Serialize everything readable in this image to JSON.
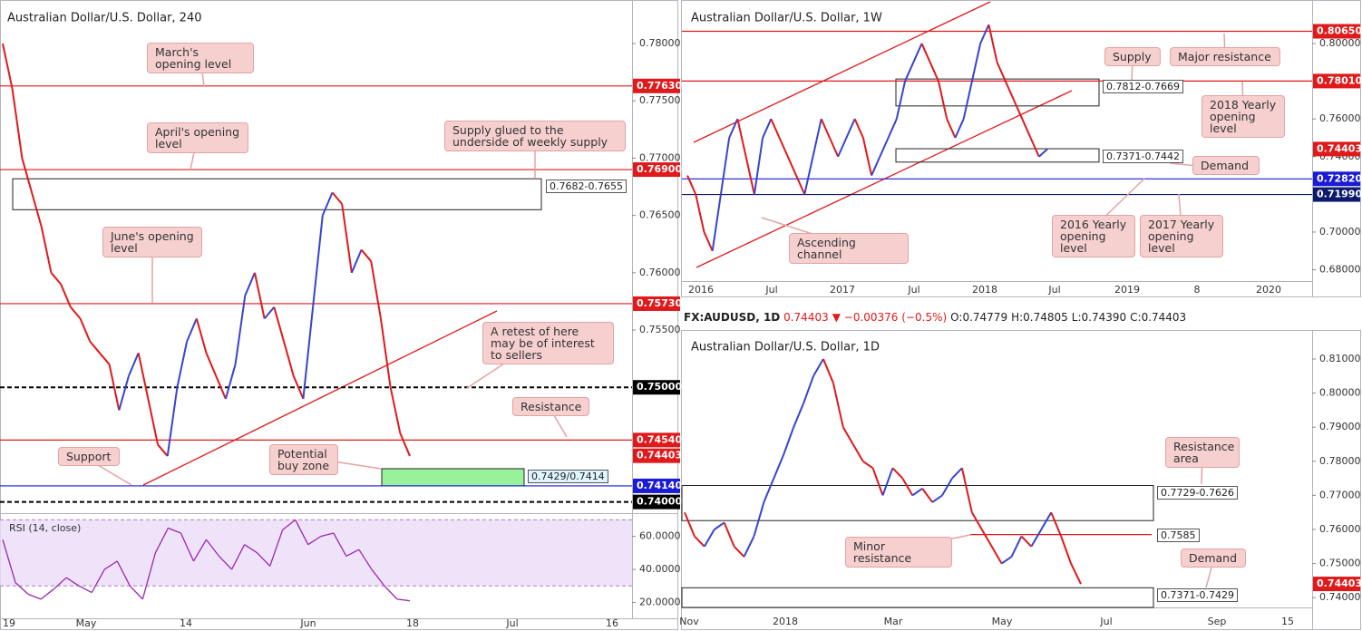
{
  "panels": [
    {
      "title": "Australian Dollar/U.S. Dollar, 240",
      "ylim": [
        0.7391,
        0.7838
      ],
      "yticks": [
        {
          "value": 0.78,
          "label": "0.78000"
        },
        {
          "value": 0.775,
          "label": "0.77500"
        },
        {
          "value": 0.77,
          "label": "0.77000"
        },
        {
          "value": 0.765,
          "label": "0.76500"
        },
        {
          "value": 0.76,
          "label": "0.76000"
        },
        {
          "value": 0.755,
          "label": "0.75500"
        }
      ],
      "xlabels": [
        "19",
        "May",
        "14",
        "Jun",
        "18",
        "Jul",
        "16"
      ],
      "levels": [
        {
          "value": 0.7763,
          "label": "0.77630",
          "color": "#e0191b",
          "style": "solid"
        },
        {
          "value": 0.769,
          "label": "0.76900",
          "color": "#e0191b",
          "style": "solid"
        },
        {
          "value": 0.7573,
          "label": "0.75730",
          "color": "#e0191b",
          "style": "solid"
        },
        {
          "value": 0.75,
          "label": "0.75000",
          "color": "#000000",
          "style": "dashed"
        },
        {
          "value": 0.7454,
          "label": "0.74540",
          "color": "#e0191b",
          "style": "solid"
        },
        {
          "value": 0.74403,
          "label": "0.74403",
          "color": "#e0191b",
          "style": "none"
        },
        {
          "value": 0.7414,
          "label": "0.74140",
          "color": "#1b1bd6",
          "style": "solid"
        },
        {
          "value": 0.74,
          "label": "0.74000",
          "color": "#000000",
          "style": "dashed"
        }
      ],
      "zones": [
        {
          "low": 0.7655,
          "high": 0.7682,
          "label": "0.7682-0.7655",
          "color": "none"
        },
        {
          "low": 0.7414,
          "high": 0.7429,
          "label": "0.7429/0.7414",
          "color": "#8ef08e"
        }
      ],
      "annotations": [
        "March's opening level",
        "April's opening level",
        "Supply glued to the underside of weekly supply",
        "June's opening level",
        "A retest of here may be of interest to sellers",
        "Resistance",
        "Support",
        "Potential buy zone"
      ],
      "close": [
        0.78,
        0.776,
        0.77,
        0.767,
        0.764,
        0.76,
        0.759,
        0.757,
        0.756,
        0.754,
        0.753,
        0.752,
        0.748,
        0.751,
        0.753,
        0.749,
        0.745,
        0.744,
        0.75,
        0.754,
        0.756,
        0.753,
        0.751,
        0.749,
        0.752,
        0.758,
        0.76,
        0.756,
        0.757,
        0.754,
        0.751,
        0.749,
        0.757,
        0.765,
        0.767,
        0.766,
        0.76,
        0.762,
        0.761,
        0.756,
        0.75,
        0.746,
        0.744
      ]
    },
    {
      "title": "Australian Dollar/U.S. Dollar, 1W",
      "ylim": [
        0.674,
        0.8231
      ],
      "yticks": [
        {
          "value": 0.8,
          "label": "0.80000"
        },
        {
          "value": 0.76,
          "label": "0.76000"
        },
        {
          "value": 0.74,
          "label": "0.74000"
        },
        {
          "value": 0.7,
          "label": "0.70000"
        },
        {
          "value": 0.68,
          "label": "0.68000"
        }
      ],
      "xlabels": [
        "2016",
        "Jul",
        "2017",
        "Jul",
        "2018",
        "Jul",
        "2019",
        "8",
        "2020"
      ],
      "levels": [
        {
          "value": 0.8065,
          "label": "0.80650",
          "color": "#e0191b",
          "style": "solid"
        },
        {
          "value": 0.7801,
          "label": "0.78010",
          "color": "#e0191b",
          "style": "solid"
        },
        {
          "value": 0.74403,
          "label": "0.74403",
          "color": "#e0191b",
          "style": "none"
        },
        {
          "value": 0.7282,
          "label": "0.72820",
          "color": "#1b1bd6",
          "style": "solid"
        },
        {
          "value": 0.7199,
          "label": "0.71990",
          "color": "#0d1a6b",
          "style": "solid"
        }
      ],
      "zones": [
        {
          "low": 0.7669,
          "high": 0.7812,
          "label": "0.7812-0.7669",
          "color": "none"
        },
        {
          "low": 0.7371,
          "high": 0.7442,
          "label": "0.7371-0.7442",
          "color": "none"
        }
      ],
      "annotations": [
        "Supply",
        "Major resistance",
        "2018 Yearly opening level",
        "Demand",
        "2016 Yearly opening level",
        "2017 Yearly opening level",
        "Ascending channel"
      ],
      "close": [
        0.73,
        0.72,
        0.7,
        0.69,
        0.72,
        0.75,
        0.76,
        0.74,
        0.72,
        0.75,
        0.76,
        0.75,
        0.74,
        0.73,
        0.72,
        0.74,
        0.76,
        0.75,
        0.74,
        0.75,
        0.76,
        0.75,
        0.73,
        0.74,
        0.75,
        0.76,
        0.78,
        0.79,
        0.8,
        0.79,
        0.78,
        0.76,
        0.75,
        0.76,
        0.78,
        0.8,
        0.81,
        0.79,
        0.78,
        0.77,
        0.76,
        0.75,
        0.74,
        0.744
      ]
    },
    {
      "title": "Australian Dollar/U.S. Dollar, 1D",
      "ylim": [
        0.73713,
        0.81824
      ],
      "yticks": [
        {
          "value": 0.81,
          "label": "0.81000"
        },
        {
          "value": 0.8,
          "label": "0.80000"
        },
        {
          "value": 0.79,
          "label": "0.79000"
        },
        {
          "value": 0.78,
          "label": "0.78000"
        },
        {
          "value": 0.77,
          "label": "0.77000"
        },
        {
          "value": 0.76,
          "label": "0.76000"
        },
        {
          "value": 0.75,
          "label": "0.75000"
        },
        {
          "value": 0.74,
          "label": "0.74000"
        }
      ],
      "xlabels": [
        "Nov",
        "2018",
        "Mar",
        "May",
        "Jul",
        "Sep",
        "15"
      ],
      "levels": [
        {
          "value": 0.74403,
          "label": "0.74403",
          "color": "#e0191b",
          "style": "none"
        }
      ],
      "zones": [
        {
          "low": 0.7626,
          "high": 0.7729,
          "label": "0.7729-0.7626",
          "color": "none"
        },
        {
          "low": 0.7585,
          "high": 0.7585,
          "label": "0.7585",
          "color": "none"
        },
        {
          "low": 0.7371,
          "high": 0.7429,
          "label": "0.7371-0.7429",
          "color": "none"
        }
      ],
      "annotations": [
        "Resistance area",
        "Minor resistance",
        "Demand"
      ],
      "close": [
        0.765,
        0.758,
        0.755,
        0.76,
        0.762,
        0.755,
        0.752,
        0.758,
        0.768,
        0.775,
        0.782,
        0.79,
        0.797,
        0.805,
        0.81,
        0.803,
        0.79,
        0.785,
        0.78,
        0.778,
        0.77,
        0.778,
        0.775,
        0.77,
        0.772,
        0.768,
        0.77,
        0.775,
        0.778,
        0.765,
        0.76,
        0.755,
        0.75,
        0.752,
        0.758,
        0.755,
        0.76,
        0.765,
        0.758,
        0.75,
        0.744
      ]
    }
  ],
  "rsi": {
    "title": "RSI (14, close)",
    "ylim": [
      10.4,
      72.96
    ],
    "yticks": [
      {
        "value": 60,
        "label": "60.0000"
      },
      {
        "value": 40,
        "label": "40.0000"
      },
      {
        "value": 20,
        "label": "20.0000"
      }
    ],
    "band": [
      30,
      70
    ],
    "values": [
      58,
      32,
      25,
      22,
      28,
      35,
      30,
      26,
      40,
      45,
      30,
      22,
      50,
      65,
      62,
      45,
      58,
      48,
      40,
      55,
      50,
      42,
      64,
      70,
      55,
      60,
      62,
      48,
      52,
      40,
      30,
      22,
      21
    ]
  },
  "quote": {
    "symbol": "FX:AUDUSD, 1D",
    "last": "0.74403",
    "change": "▼ −0.00376 (−0.5%)",
    "open": "O:0.74779",
    "high": "H:0.74805",
    "low": "L:0.74390",
    "close": "C:0.74403"
  }
}
